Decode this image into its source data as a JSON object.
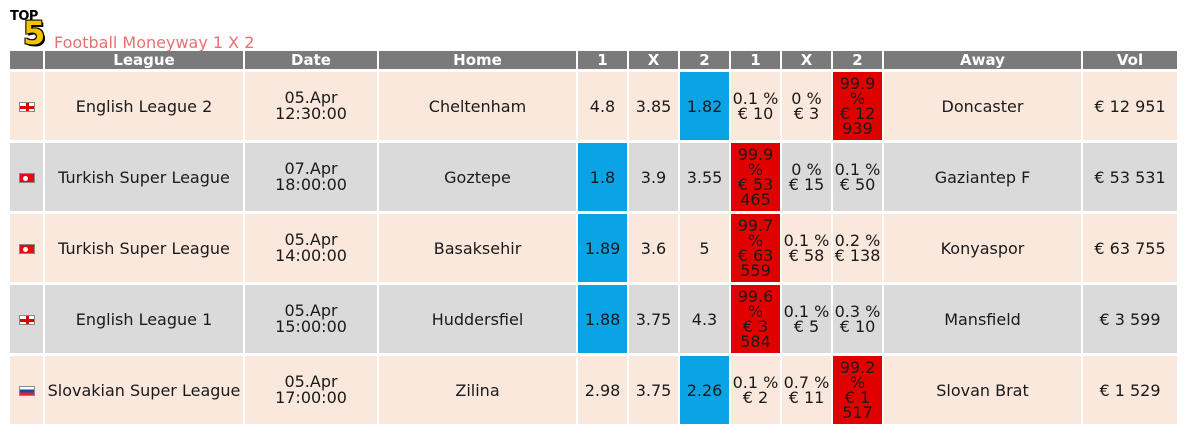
{
  "logo": {
    "top_text": "TOP",
    "number": "5"
  },
  "title": "Football Moneyway 1 X 2",
  "colors": {
    "header_bg": "#7a7a7a",
    "row_odd_bg": "#fbe8dc",
    "row_even_bg": "#dadada",
    "best_odds_bg": "#0aa3e4",
    "top_money_bg": "#e00000",
    "title_color": "#e8716f"
  },
  "columns": {
    "league": "League",
    "date": "Date",
    "home": "Home",
    "odds_1": "1",
    "odds_x": "X",
    "odds_2": "2",
    "mw_1": "1",
    "mw_x": "X",
    "mw_2": "2",
    "away": "Away",
    "vol": "Vol"
  },
  "rows": [
    {
      "flag": "england-flag-icon",
      "league": "English League 2",
      "date": "05.Apr",
      "time": "12:30:00",
      "home": "Cheltenham",
      "odds_1": "4.8",
      "odds_x": "3.85",
      "odds_2": "1.82",
      "best": "2",
      "mw_1_pct": "0.1 %",
      "mw_1_amt": "€ 10",
      "mw_x_pct": "0 %",
      "mw_x_amt": "€ 3",
      "mw_2_pct": "99.9 %",
      "mw_2_amt": "€ 12 939",
      "hot": "2",
      "away": "Doncaster",
      "vol": "€ 12 951"
    },
    {
      "flag": "turkey-flag-icon",
      "league": "Turkish Super League",
      "date": "07.Apr",
      "time": "18:00:00",
      "home": "Goztepe",
      "odds_1": "1.8",
      "odds_x": "3.9",
      "odds_2": "3.55",
      "best": "1",
      "mw_1_pct": "99.9 %",
      "mw_1_amt": "€ 53 465",
      "mw_x_pct": "0 %",
      "mw_x_amt": "€ 15",
      "mw_2_pct": "0.1 %",
      "mw_2_amt": "€ 50",
      "hot": "1",
      "away": "Gaziantep F",
      "vol": "€ 53 531"
    },
    {
      "flag": "turkey-flag-icon",
      "league": "Turkish Super League",
      "date": "05.Apr",
      "time": "14:00:00",
      "home": "Basaksehir",
      "odds_1": "1.89",
      "odds_x": "3.6",
      "odds_2": "5",
      "best": "1",
      "mw_1_pct": "99.7 %",
      "mw_1_amt": "€ 63 559",
      "mw_x_pct": "0.1 %",
      "mw_x_amt": "€ 58",
      "mw_2_pct": "0.2 %",
      "mw_2_amt": "€ 138",
      "hot": "1",
      "away": "Konyaspor",
      "vol": "€ 63 755"
    },
    {
      "flag": "england-flag-icon",
      "league": "English League 1",
      "date": "05.Apr",
      "time": "15:00:00",
      "home": "Huddersfiel",
      "odds_1": "1.88",
      "odds_x": "3.75",
      "odds_2": "4.3",
      "best": "1",
      "mw_1_pct": "99.6 %",
      "mw_1_amt": "€ 3 584",
      "mw_x_pct": "0.1 %",
      "mw_x_amt": "€ 5",
      "mw_2_pct": "0.3 %",
      "mw_2_amt": "€ 10",
      "hot": "1",
      "away": "Mansfield",
      "vol": "€ 3 599"
    },
    {
      "flag": "slovakia-flag-icon",
      "league": "Slovakian Super League",
      "date": "05.Apr",
      "time": "17:00:00",
      "home": "Zilina",
      "odds_1": "2.98",
      "odds_x": "3.75",
      "odds_2": "2.26",
      "best": "2",
      "mw_1_pct": "0.1 %",
      "mw_1_amt": "€ 2",
      "mw_x_pct": "0.7 %",
      "mw_x_amt": "€ 11",
      "mw_2_pct": "99.2 %",
      "mw_2_amt": "€ 1 517",
      "hot": "2",
      "away": "Slovan Brat",
      "vol": "€ 1 529"
    }
  ]
}
